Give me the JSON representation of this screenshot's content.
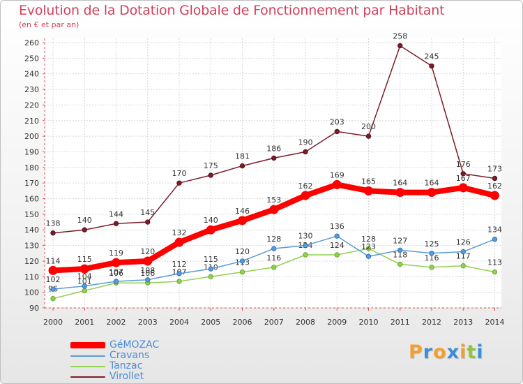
{
  "title": "Evolution de la Dotation Globale de Fonctionnement par Habitant",
  "subtitle": "(en € et par an)",
  "logo": {
    "text": "Proxiti",
    "letters": [
      "P",
      "r",
      "o",
      "x",
      "i",
      "t",
      "i"
    ],
    "colors": [
      "#f0a030",
      "#3a8fd8",
      "#f0a030",
      "#3a8fd8",
      "#f0a030",
      "#8cc63f",
      "#3a8fd8"
    ]
  },
  "chart_data": {
    "type": "line",
    "title": "Evolution de la Dotation Globale de Fonctionnement par Habitant",
    "subtitle": "(en € et par an)",
    "xlabel": "",
    "ylabel": "",
    "x": [
      "2000",
      "2001",
      "2002",
      "2003",
      "2004",
      "2005",
      "2006",
      "2007",
      "2008",
      "2009",
      "2010",
      "2011",
      "2012",
      "2013",
      "2014"
    ],
    "ylim": [
      90,
      260
    ],
    "yticks": [
      90,
      100,
      110,
      120,
      130,
      140,
      150,
      160,
      170,
      180,
      190,
      200,
      210,
      220,
      230,
      240,
      250,
      260
    ],
    "grid": true,
    "legend_position": "bottom-left",
    "series": [
      {
        "name": "GéMOZAC",
        "color": "#ff0000",
        "values": [
          114,
          115,
          119,
          120,
          132,
          140,
          146,
          153,
          162,
          169,
          165,
          164,
          164,
          167,
          162
        ]
      },
      {
        "name": "Cravans",
        "color": "#5b9bd5",
        "values": [
          102,
          104,
          107,
          108,
          112,
          115,
          120,
          128,
          130,
          136,
          123,
          127,
          125,
          126,
          134
        ]
      },
      {
        "name": "Tanzac",
        "color": "#92d050",
        "values": [
          96,
          101,
          106,
          106,
          107,
          110,
          113,
          116,
          124,
          124,
          128,
          118,
          116,
          117,
          113
        ]
      },
      {
        "name": "Virollet",
        "color": "#7b1c2a",
        "values": [
          138,
          140,
          144,
          145,
          170,
          175,
          181,
          186,
          190,
          203,
          200,
          258,
          245,
          176,
          173
        ]
      }
    ]
  }
}
